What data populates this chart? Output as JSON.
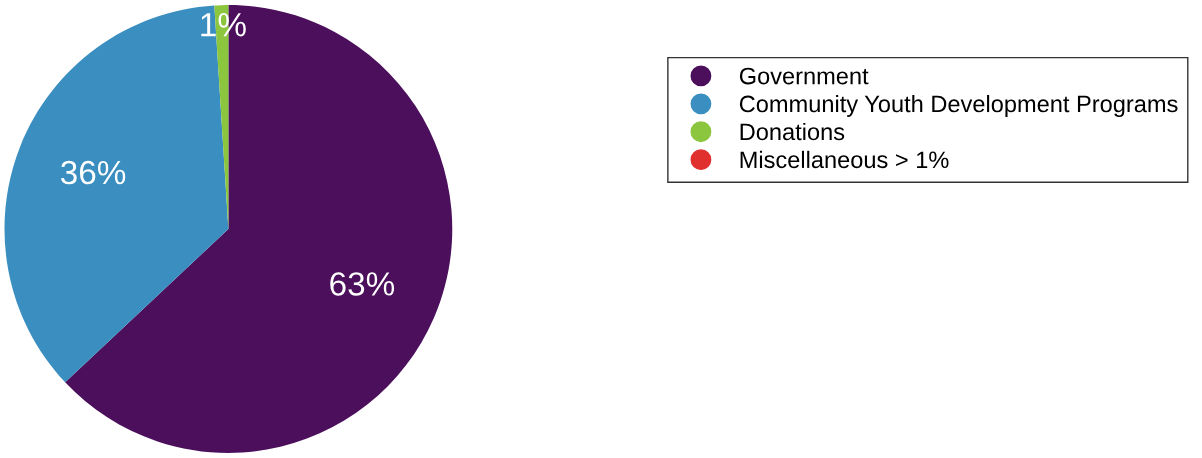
{
  "chart_data": {
    "type": "pie",
    "categories": [
      "Government",
      "Community Youth Development Programs",
      "Donations",
      "Miscellaneous > 1%"
    ],
    "values": [
      63,
      36,
      1,
      0
    ],
    "colors": [
      "#4b0f5c",
      "#3b8fc0",
      "#8cc63f",
      "#e0312f"
    ],
    "value_labels": [
      "63%",
      "36%",
      "1%",
      null
    ],
    "legend": "top right"
  }
}
